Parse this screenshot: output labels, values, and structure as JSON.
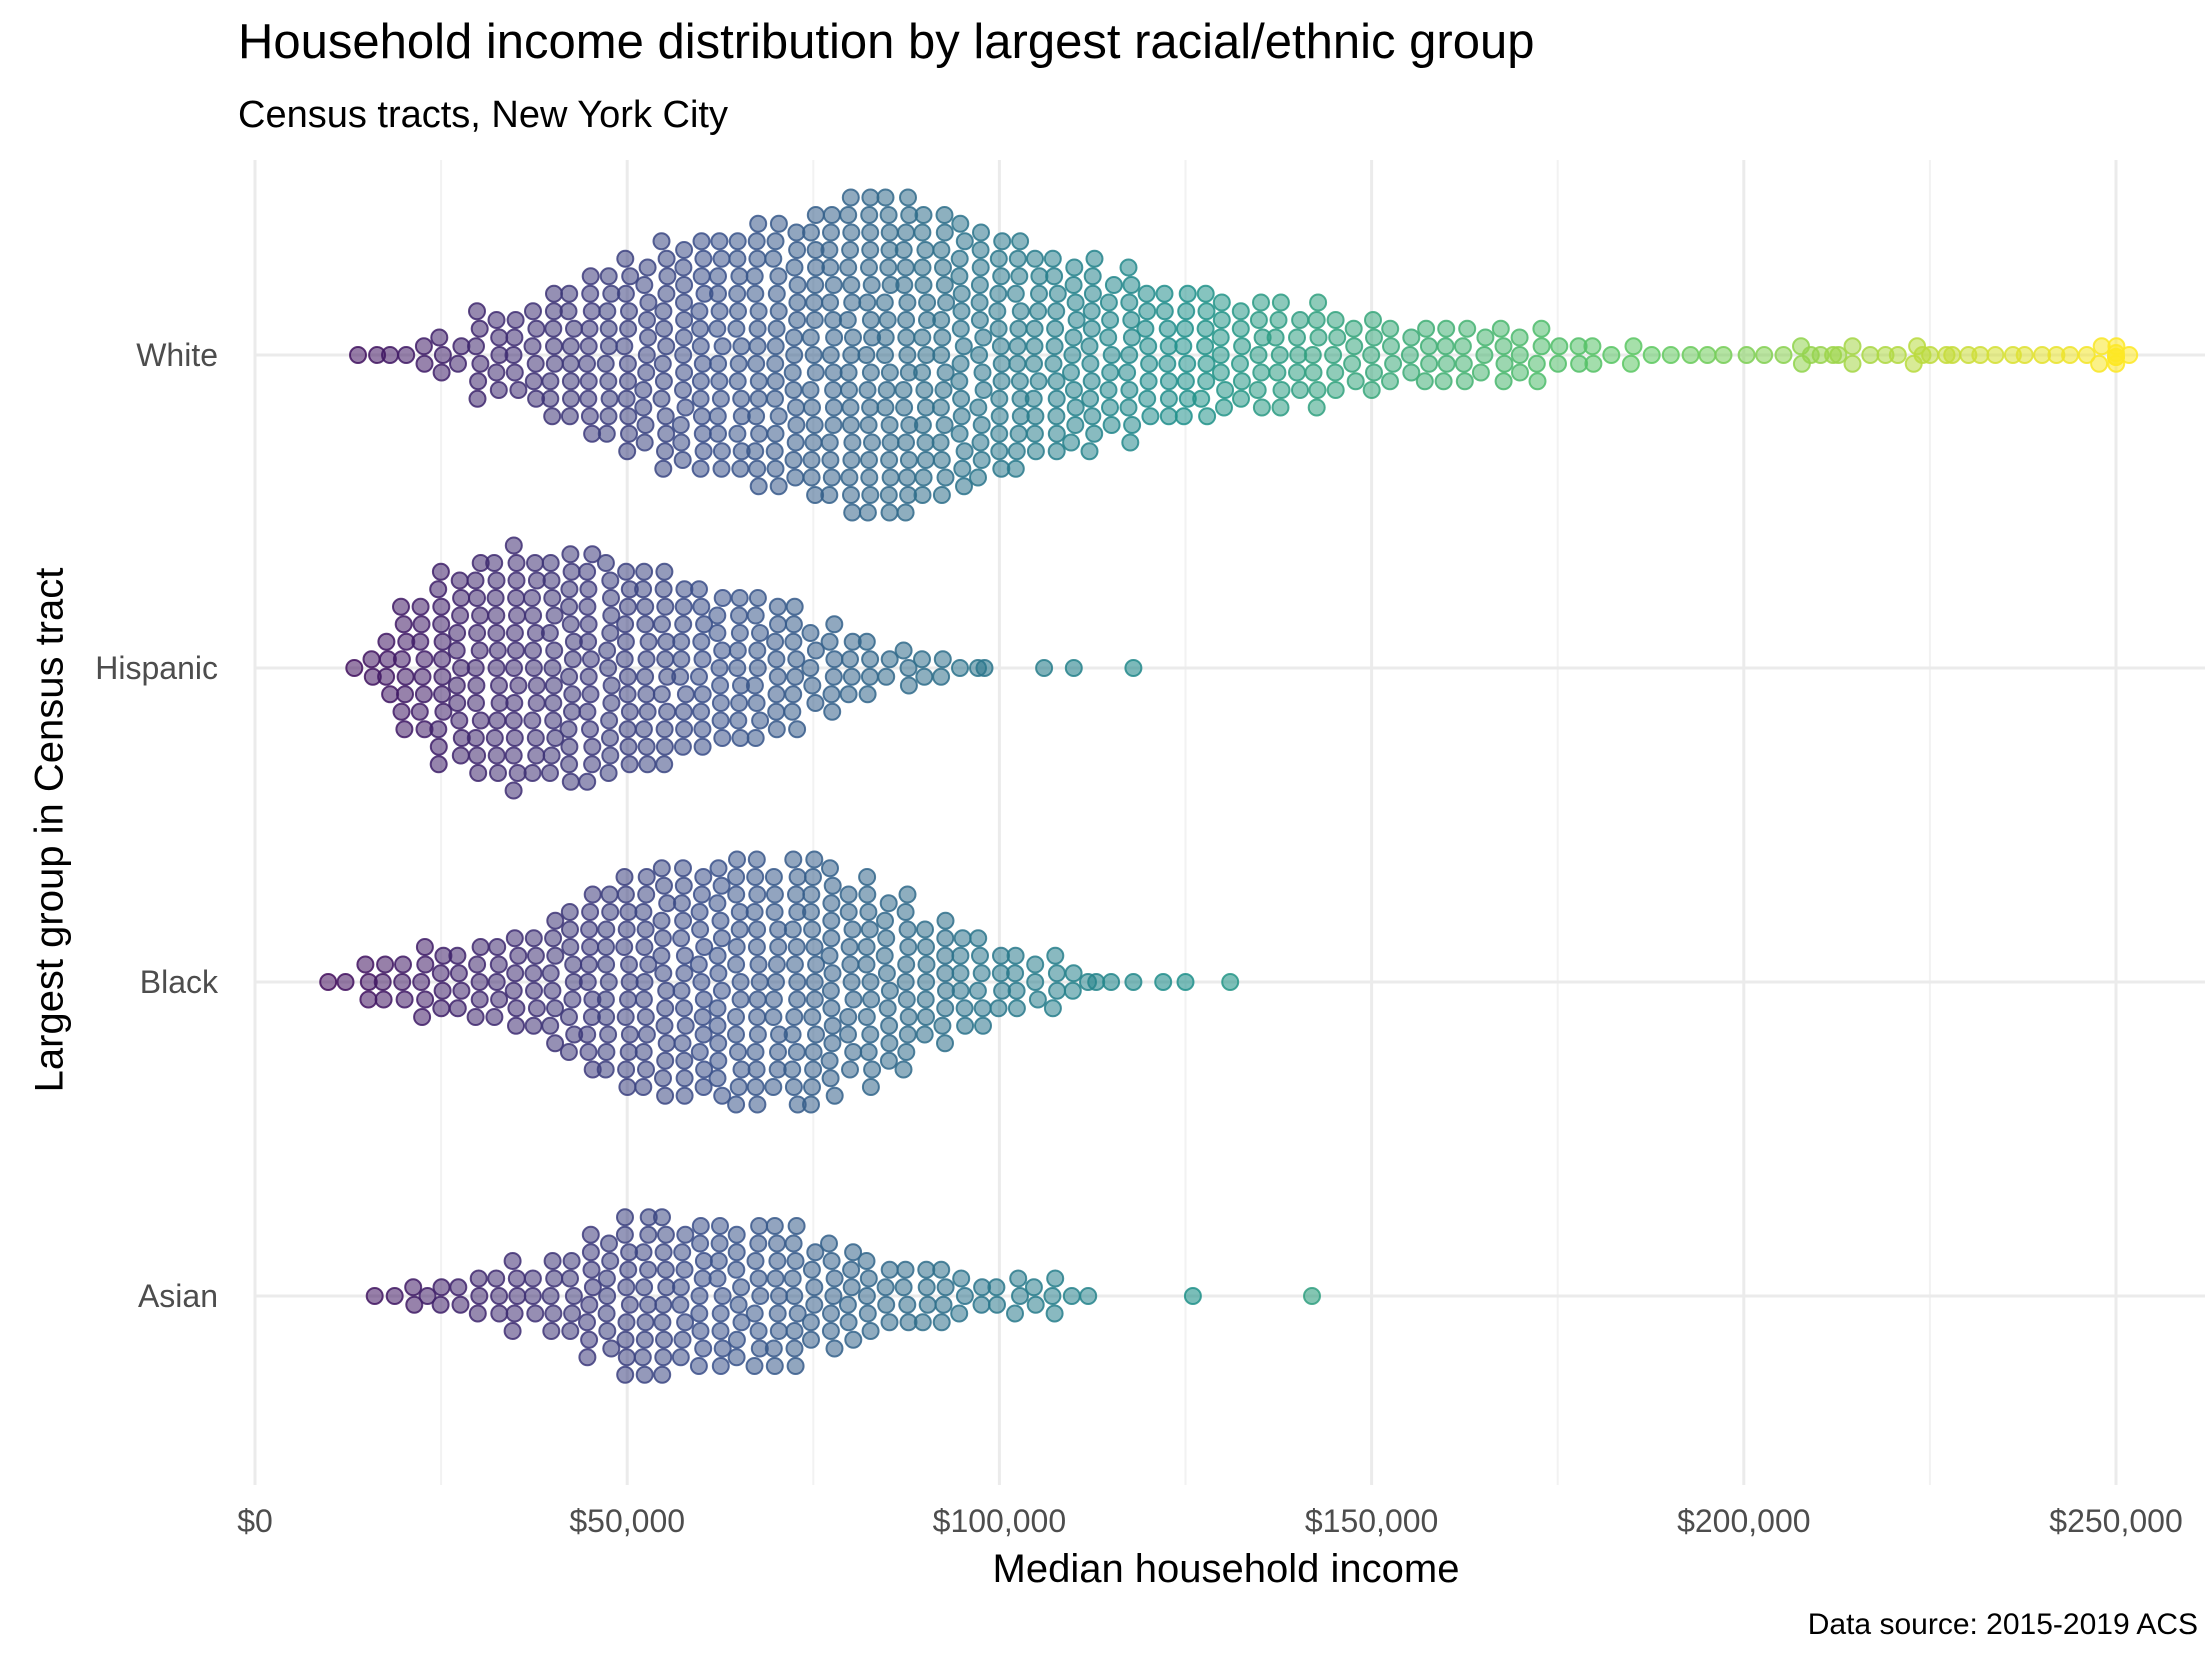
{
  "chart_data": {
    "type": "scatter",
    "subtype": "beeswarm",
    "title": "Household income distribution by largest racial/ethnic group",
    "subtitle": "Census tracts, New York City",
    "xlabel": "Median household income",
    "ylabel": "Largest group in Census tract",
    "caption": "Data source: 2015-2019 ACS",
    "xlim": [
      0,
      260000
    ],
    "x_ticks": [
      "$0",
      "$50,000",
      "$100,000",
      "$150,000",
      "$200,000",
      "$250,000"
    ],
    "x_tick_values": [
      0,
      50000,
      100000,
      150000,
      200000,
      250000
    ],
    "categories": [
      "White",
      "Hispanic",
      "Black",
      "Asian"
    ],
    "grid": true,
    "colormap": "viridis",
    "color_scale": [
      "#440154",
      "#3b528b",
      "#21918c",
      "#5ec962",
      "#fde725"
    ],
    "series": [
      {
        "category": "White",
        "count_approx": 1100,
        "range": [
          14000,
          250000
        ],
        "summary": {
          "min": 14000,
          "q1": 60000,
          "median": 82000,
          "q3": 110000,
          "max": 250000
        },
        "density_profile": [
          [
            14000,
            1
          ],
          [
            20000,
            2
          ],
          [
            25000,
            3
          ],
          [
            30000,
            5
          ],
          [
            35000,
            6
          ],
          [
            40000,
            8
          ],
          [
            45000,
            10
          ],
          [
            50000,
            11
          ],
          [
            55000,
            13
          ],
          [
            60000,
            14
          ],
          [
            65000,
            15
          ],
          [
            70000,
            16
          ],
          [
            75000,
            17
          ],
          [
            80000,
            19
          ],
          [
            85000,
            19
          ],
          [
            90000,
            18
          ],
          [
            95000,
            16
          ],
          [
            100000,
            14
          ],
          [
            105000,
            12
          ],
          [
            110000,
            11
          ],
          [
            115000,
            10
          ],
          [
            120000,
            9
          ],
          [
            125000,
            8
          ],
          [
            130000,
            7
          ],
          [
            135000,
            7
          ],
          [
            140000,
            6
          ],
          [
            145000,
            5
          ],
          [
            150000,
            5
          ],
          [
            155000,
            4
          ],
          [
            160000,
            4
          ],
          [
            165000,
            4
          ],
          [
            170000,
            3
          ],
          [
            175000,
            2
          ],
          [
            180000,
            2
          ],
          [
            185000,
            1
          ],
          [
            190000,
            1
          ],
          [
            195000,
            1
          ],
          [
            200000,
            1
          ],
          [
            205000,
            1
          ],
          [
            210000,
            1
          ],
          [
            215000,
            1
          ],
          [
            225000,
            1
          ],
          [
            230000,
            1
          ],
          [
            250000,
            1
          ]
        ],
        "outliers": [
          209000,
          212000,
          224000,
          228000,
          250000,
          250000,
          250000
        ]
      },
      {
        "category": "Hispanic",
        "count_approx": 700,
        "range": [
          13000,
          118000
        ],
        "summary": {
          "min": 13000,
          "q1": 30000,
          "median": 42000,
          "q3": 58000,
          "max": 118000
        },
        "density_profile": [
          [
            13000,
            1
          ],
          [
            16000,
            3
          ],
          [
            20000,
            8
          ],
          [
            25000,
            12
          ],
          [
            30000,
            14
          ],
          [
            35000,
            14
          ],
          [
            40000,
            13
          ],
          [
            45000,
            13
          ],
          [
            50000,
            12
          ],
          [
            55000,
            11
          ],
          [
            60000,
            10
          ],
          [
            65000,
            9
          ],
          [
            70000,
            8
          ],
          [
            75000,
            6
          ],
          [
            80000,
            4
          ],
          [
            85000,
            3
          ],
          [
            90000,
            2
          ],
          [
            95000,
            1
          ]
        ],
        "outliers": [
          98000,
          106000,
          110000,
          118000
        ]
      },
      {
        "category": "Black",
        "count_approx": 850,
        "range": [
          10000,
          131000
        ],
        "summary": {
          "min": 10000,
          "q1": 44000,
          "median": 60000,
          "q3": 78000,
          "max": 131000
        },
        "density_profile": [
          [
            10000,
            1
          ],
          [
            15000,
            3
          ],
          [
            20000,
            4
          ],
          [
            25000,
            4
          ],
          [
            30000,
            5
          ],
          [
            35000,
            6
          ],
          [
            40000,
            9
          ],
          [
            45000,
            11
          ],
          [
            50000,
            13
          ],
          [
            55000,
            13
          ],
          [
            60000,
            14
          ],
          [
            65000,
            14
          ],
          [
            70000,
            14
          ],
          [
            75000,
            14
          ],
          [
            80000,
            12
          ],
          [
            85000,
            10
          ],
          [
            90000,
            8
          ],
          [
            95000,
            6
          ],
          [
            100000,
            4
          ],
          [
            105000,
            3
          ],
          [
            110000,
            1
          ]
        ],
        "outliers": [
          113000,
          115000,
          118000,
          122000,
          125000,
          131000
        ]
      },
      {
        "category": "Asian",
        "count_approx": 320,
        "range": [
          16000,
          142000
        ],
        "summary": {
          "min": 16000,
          "q1": 48000,
          "median": 62000,
          "q3": 78000,
          "max": 142000
        },
        "density_profile": [
          [
            16000,
            1
          ],
          [
            21000,
            1
          ],
          [
            25000,
            2
          ],
          [
            30000,
            3
          ],
          [
            35000,
            4
          ],
          [
            40000,
            5
          ],
          [
            45000,
            7
          ],
          [
            50000,
            10
          ],
          [
            55000,
            9
          ],
          [
            60000,
            9
          ],
          [
            65000,
            9
          ],
          [
            70000,
            8
          ],
          [
            75000,
            6
          ],
          [
            80000,
            5
          ],
          [
            85000,
            5
          ],
          [
            90000,
            4
          ],
          [
            95000,
            3
          ],
          [
            100000,
            2
          ],
          [
            105000,
            2
          ],
          [
            110000,
            1
          ]
        ],
        "outliers": [
          126000,
          142000
        ]
      }
    ]
  }
}
